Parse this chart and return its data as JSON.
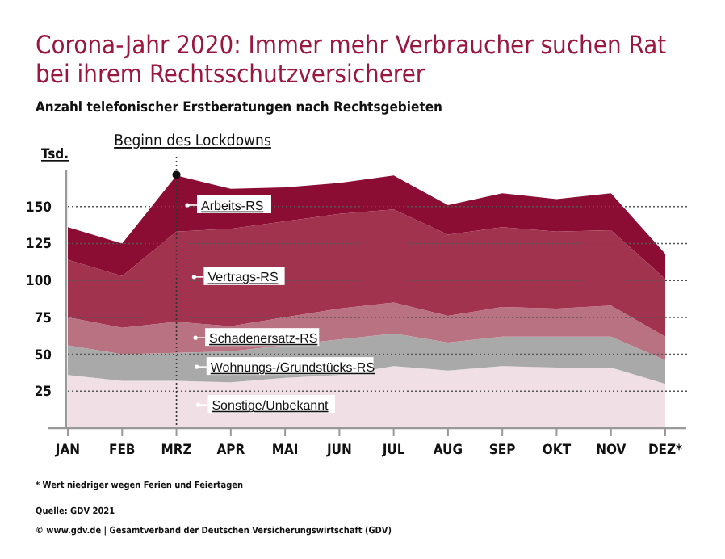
{
  "chart_data": {
    "type": "area",
    "stacked": true,
    "title": "Corona-Jahr 2020: Immer mehr Verbraucher suchen Rat bei ihrem Rechtsschutzversicherer",
    "subtitle": "Anzahl telefonischer Erstberatungen nach Rechtsgebieten",
    "ylabel": "Tsd.",
    "categories": [
      "JAN",
      "FEB",
      "MRZ",
      "APR",
      "MAI",
      "JUN",
      "JUL",
      "AUG",
      "SEP",
      "OKT",
      "NOV",
      "DEZ*"
    ],
    "series": [
      {
        "name": "Sonstige/Unbekannt",
        "color": "#f0dfe4",
        "values": [
          36,
          32,
          32,
          31,
          34,
          36,
          42,
          39,
          42,
          41,
          41,
          30
        ]
      },
      {
        "name": "Wohnungs-/Grundstücks-RS",
        "color": "#a9a9a9",
        "values": [
          20,
          18,
          19,
          21,
          22,
          24,
          22,
          19,
          20,
          21,
          21,
          16
        ]
      },
      {
        "name": "Schadenersatz-RS",
        "color": "#b87282",
        "values": [
          19,
          18,
          21,
          17,
          19,
          21,
          21,
          18,
          20,
          19,
          21,
          16
        ]
      },
      {
        "name": "Vertrags-RS",
        "color": "#a2334f",
        "values": [
          39,
          35,
          61,
          66,
          65,
          64,
          63,
          55,
          54,
          52,
          51,
          39
        ]
      },
      {
        "name": "Arbeits-RS",
        "color": "#8b0d33",
        "values": [
          22,
          22,
          38,
          27,
          23,
          21,
          23,
          20,
          23,
          22,
          25,
          17
        ]
      }
    ],
    "ylim": [
      0,
      175
    ],
    "yticks": [
      25,
      50,
      75,
      100,
      125,
      150
    ],
    "grid": "y",
    "ref_lines": [
      {
        "axis": "x",
        "value": "MRZ",
        "line_style": "dotted",
        "color": "#333333"
      }
    ],
    "annotations": [
      {
        "text": "Beginn des Lockdowns",
        "x": "MRZ",
        "y": 171.5
      },
      "* Wert niedriger wegen Ferien und Feiertagen",
      "Quelle: GDV 2021",
      "© www.gdv.de | Gesamtverband der Deutschen Versicherungswirtschaft (GDV)"
    ]
  }
}
